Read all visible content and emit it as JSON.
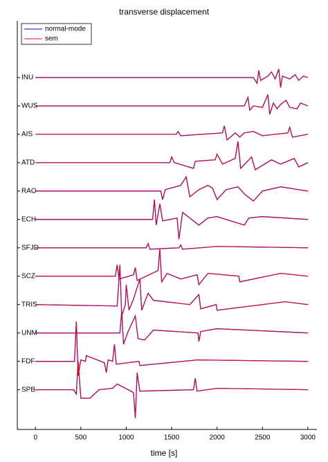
{
  "chart_data": {
    "type": "line",
    "title": "transverse displacement",
    "xlabel": "time [s]",
    "xlim": [
      -200,
      3100
    ],
    "xticks": [
      0,
      500,
      1000,
      1500,
      2000,
      2500,
      3000
    ],
    "ylim": [
      -0.4,
      14
    ],
    "yticks": [
      {
        "value": 12,
        "label": "INU"
      },
      {
        "value": 11,
        "label": "WUS"
      },
      {
        "value": 10,
        "label": "AIS"
      },
      {
        "value": 9,
        "label": "ATD"
      },
      {
        "value": 8,
        "label": "RAO"
      },
      {
        "value": 7,
        "label": "ECH"
      },
      {
        "value": 6,
        "label": "SFJD"
      },
      {
        "value": 5,
        "label": "SCZ"
      },
      {
        "value": 4,
        "label": "TRIS"
      },
      {
        "value": 3,
        "label": "UNM"
      },
      {
        "value": 2,
        "label": "FDF"
      },
      {
        "value": 1,
        "label": "SPB"
      }
    ],
    "legend": "upper left",
    "x": [
      [
        0,
        2400,
        2440,
        2460,
        2480,
        2560,
        2600,
        2640,
        2680,
        2700,
        2720,
        2800,
        2860,
        2900,
        2950,
        3000
      ],
      [
        0,
        2300,
        2340,
        2360,
        2400,
        2500,
        2560,
        2580,
        2620,
        2660,
        2700,
        2760,
        2800,
        2880,
        2920,
        3000
      ],
      [
        0,
        1550,
        1570,
        1600,
        2060,
        2080,
        2110,
        2200,
        2250,
        2300,
        2400,
        2500,
        2780,
        2800,
        2830,
        3000
      ],
      [
        0,
        1480,
        1500,
        1530,
        1740,
        1760,
        1980,
        2000,
        2060,
        2200,
        2230,
        2260,
        2380,
        2420,
        2600,
        2700,
        2850,
        2900,
        3000
      ],
      [
        0,
        1380,
        1400,
        1430,
        1600,
        1660,
        1700,
        1800,
        1900,
        1950,
        2000,
        2100,
        2230,
        2300,
        2400,
        2500,
        2700,
        3000
      ],
      [
        0,
        1290,
        1310,
        1330,
        1370,
        1400,
        1560,
        1580,
        1620,
        1700,
        1800,
        1900,
        2000,
        2300,
        2350,
        2500,
        3000
      ],
      [
        0,
        1220,
        1240,
        1260,
        1580,
        1600,
        1620,
        2000,
        3000
      ],
      [
        0,
        880,
        900,
        920,
        1080,
        1100,
        1120,
        1350,
        1370,
        1390,
        1450,
        1600,
        1780,
        1800,
        1900,
        2240,
        2250,
        2700,
        3000
      ],
      [
        0,
        900,
        930,
        950,
        990,
        1000,
        1030,
        1080,
        1150,
        1170,
        1240,
        1300,
        1700,
        1800,
        1820,
        1990,
        2000,
        2750,
        3000
      ],
      [
        0,
        930,
        950,
        970,
        1020,
        1100,
        1130,
        1200,
        1300,
        1790,
        1800,
        1820,
        2000,
        3000
      ],
      [
        0,
        430,
        450,
        470,
        500,
        550,
        560,
        760,
        780,
        800,
        850,
        870,
        890,
        1140,
        1150,
        1780,
        3000
      ],
      [
        0,
        420,
        450,
        470,
        500,
        600,
        700,
        850,
        900,
        1080,
        1100,
        1120,
        1150,
        1740,
        1760,
        1780,
        2000,
        3000
      ]
    ],
    "series": [
      {
        "name": "normal-mode",
        "color": "#0000ff",
        "values": [
          [
            12,
            12,
            11.8,
            12.25,
            11.9,
            12.05,
            12.2,
            11.95,
            12.3,
            11.65,
            12.05,
            11.95,
            12.1,
            11.9,
            12.05,
            12
          ],
          [
            11,
            11,
            11.3,
            10.85,
            11,
            10.95,
            11.4,
            10.7,
            11.1,
            10.9,
            11.05,
            11.2,
            10.95,
            10.9,
            11.1,
            11
          ],
          [
            10,
            10,
            10.1,
            9.95,
            10.05,
            10.3,
            9.8,
            10.05,
            9.9,
            10.05,
            10.1,
            9.95,
            10.05,
            10.25,
            9.9,
            10
          ],
          [
            9,
            9,
            9.2,
            9,
            8.8,
            9.05,
            9.1,
            9.3,
            8.95,
            9.15,
            9.75,
            8.8,
            9.2,
            8.75,
            9.1,
            8.95,
            9.15,
            8.85,
            9
          ],
          [
            8,
            8,
            7.7,
            8.05,
            8.2,
            8.5,
            7.8,
            8.05,
            8.2,
            8.1,
            7.7,
            8.05,
            8.15,
            7.9,
            7.65,
            8,
            8.15,
            8
          ],
          [
            7,
            7,
            7.7,
            6.8,
            7.55,
            6.95,
            7.05,
            6.3,
            7.25,
            7.05,
            6.8,
            7.05,
            7.1,
            6.8,
            7.05,
            7.1,
            7
          ],
          [
            6,
            6,
            6.15,
            5.95,
            6,
            6.1,
            5.95,
            6.05,
            6
          ],
          [
            5,
            5,
            5.4,
            4.9,
            5.05,
            5.3,
            4.85,
            5.2,
            5.95,
            4.8,
            5.1,
            4.9,
            5.05,
            4.7,
            5.1,
            5,
            4.8,
            5.1,
            5
          ],
          [
            4,
            3.95,
            5.4,
            3.6,
            4,
            4.7,
            3.8,
            4.2,
            4.9,
            3.8,
            4.4,
            4.15,
            4,
            4.35,
            3.85,
            4,
            3.8,
            4.1,
            4
          ],
          [
            3,
            3,
            3.75,
            2.6,
            3.05,
            3.6,
            2.8,
            2.75,
            3.1,
            3,
            2.7,
            3.05,
            3.15,
            3
          ],
          [
            2,
            2,
            3.4,
            1.5,
            2.05,
            2,
            2.2,
            1.95,
            1.6,
            2.05,
            2,
            2.6,
            1.9,
            2,
            1.85,
            2.05,
            2
          ],
          [
            1,
            1,
            0.85,
            2,
            0.7,
            0.7,
            1,
            1.05,
            1.2,
            0.9,
            0,
            1.6,
            0.95,
            1,
            1.4,
            0.95,
            1.05,
            1
          ]
        ]
      },
      {
        "name": "sem",
        "color": "#ff0000",
        "values": [
          [
            12,
            12,
            11.8,
            12.25,
            11.9,
            12.05,
            12.2,
            11.95,
            12.3,
            11.65,
            12.05,
            11.95,
            12.1,
            11.9,
            12.05,
            12
          ],
          [
            11,
            11,
            11.3,
            10.85,
            11,
            10.95,
            11.4,
            10.7,
            11.1,
            10.9,
            11.05,
            11.2,
            10.95,
            10.9,
            11.1,
            11
          ],
          [
            10,
            10,
            10.1,
            9.95,
            10.05,
            10.3,
            9.8,
            10.05,
            9.9,
            10.05,
            10.1,
            9.95,
            10.05,
            10.25,
            9.9,
            10
          ],
          [
            9,
            9,
            9.2,
            9,
            8.8,
            9.05,
            9.1,
            9.3,
            8.95,
            9.15,
            9.75,
            8.8,
            9.2,
            8.75,
            9.1,
            8.95,
            9.15,
            8.85,
            9
          ],
          [
            8,
            8,
            7.7,
            8.05,
            8.2,
            8.5,
            7.8,
            8.05,
            8.2,
            8.1,
            7.7,
            8.05,
            8.15,
            7.9,
            7.65,
            8,
            8.15,
            8
          ],
          [
            7,
            7,
            7.7,
            6.8,
            7.55,
            6.95,
            7.05,
            6.3,
            7.25,
            7.05,
            6.8,
            7.05,
            7.1,
            6.8,
            7.05,
            7.1,
            7
          ],
          [
            6,
            6,
            6.15,
            5.95,
            6,
            6.1,
            5.95,
            6.05,
            6
          ],
          [
            5,
            5,
            5.4,
            4.9,
            5.05,
            5.3,
            4.85,
            5.2,
            5.95,
            4.8,
            5.1,
            4.9,
            5.05,
            4.7,
            5.1,
            5,
            4.8,
            5.1,
            5
          ],
          [
            4,
            3.95,
            5.4,
            3.6,
            4,
            4.7,
            3.8,
            4.2,
            4.9,
            3.8,
            4.4,
            4.15,
            4,
            4.35,
            3.85,
            4,
            3.8,
            4.1,
            4
          ],
          [
            3,
            3,
            3.75,
            2.6,
            3.05,
            3.6,
            2.8,
            2.75,
            3.1,
            3,
            2.7,
            3.05,
            3.15,
            3
          ],
          [
            2,
            2,
            3.4,
            1.5,
            2.05,
            2,
            2.2,
            1.95,
            1.6,
            2.05,
            2,
            2.6,
            1.9,
            2,
            1.85,
            2.05,
            2
          ],
          [
            1,
            1,
            0.85,
            2,
            0.7,
            0.7,
            1,
            1.05,
            1.2,
            0.9,
            0,
            1.6,
            0.95,
            1,
            1.4,
            0.95,
            1.05,
            1
          ]
        ]
      }
    ]
  }
}
